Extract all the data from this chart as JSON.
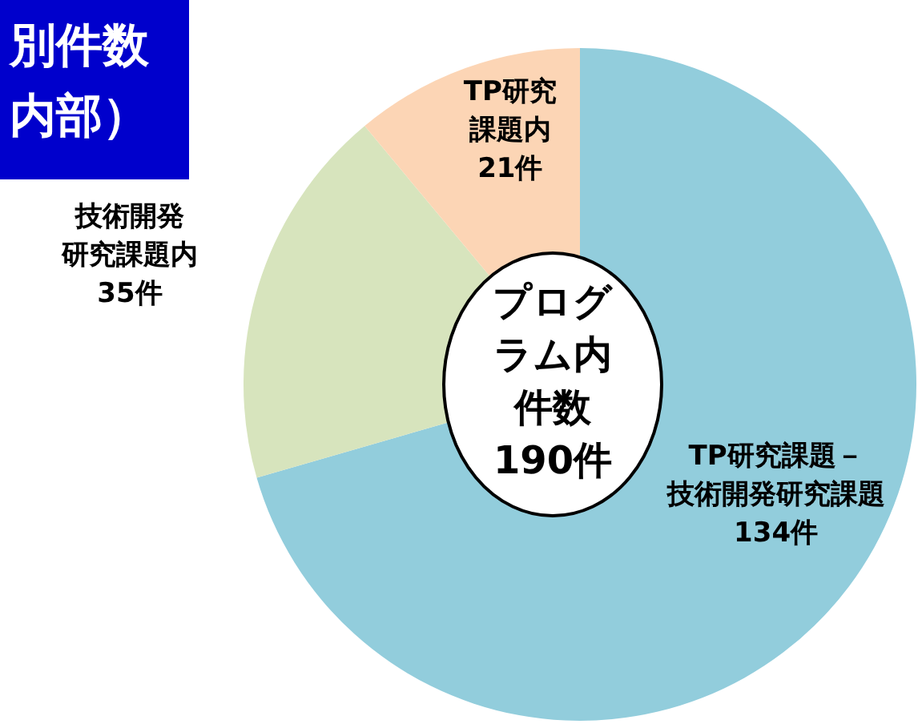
{
  "chart_data": {
    "type": "pie",
    "title": "別件数内部）",
    "categories": [
      "TP研究課題－技術開発研究課題",
      "技術開発研究課題内",
      "TP研究課題内"
    ],
    "values": [
      134,
      35,
      21
    ],
    "value_labels": [
      "134件",
      "35件",
      "21件"
    ],
    "colors": [
      "#92cddc",
      "#d7e4bd",
      "#fcd5b5"
    ],
    "annotations": [
      "プログラム内件数190件"
    ],
    "legend": false
  }
}
